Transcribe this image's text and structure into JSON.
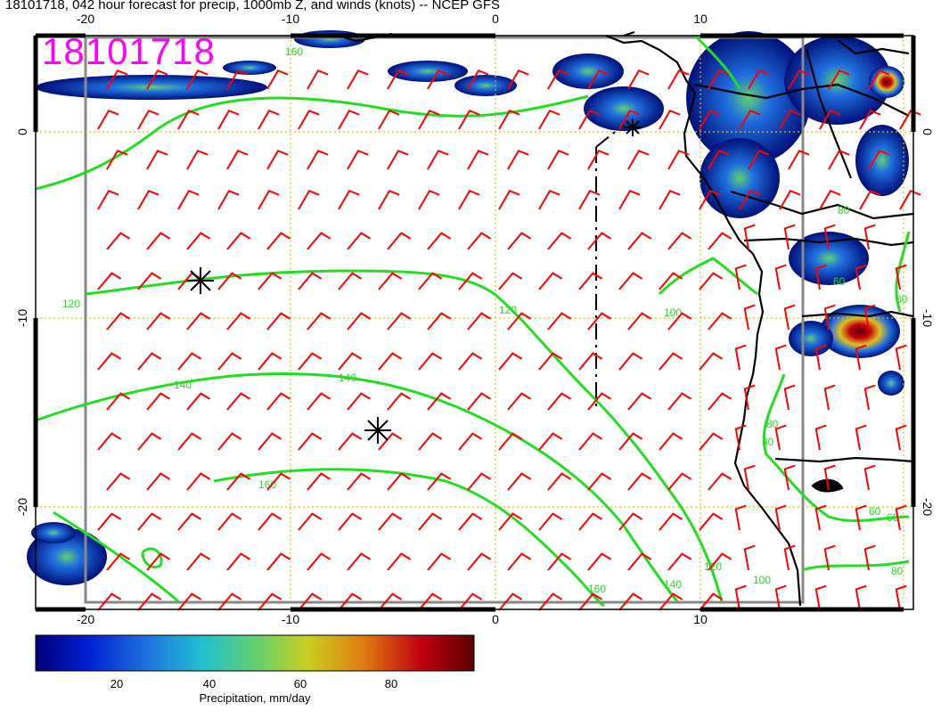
{
  "title": "18101718, 042 hour forecast for precip, 1000mb Z, and winds (knots) -- NCEP GFS",
  "valid_stamp": "18101718",
  "axes": {
    "lon_top": [
      "-20",
      "-10",
      "0",
      "10"
    ],
    "lon_bottom": [
      "-20",
      "-10",
      "0",
      "10"
    ],
    "lat_left": [
      "0",
      "-10",
      "-20"
    ],
    "lat_right": [
      "0",
      "-10",
      "-20"
    ]
  },
  "contour_labels": [
    "120",
    "140",
    "160",
    "120",
    "140",
    "160",
    "100",
    "80",
    "60",
    "80",
    "60",
    "80",
    "100",
    "120",
    "140",
    "160",
    "80",
    "60",
    "80"
  ],
  "colorbar": {
    "label": "Precipitation, mm/day",
    "ticks": [
      "20",
      "40",
      "60",
      "80"
    ],
    "range": [
      2,
      96
    ]
  },
  "colors": {
    "contour": "#22dd22",
    "wind_barb": "#ff0000",
    "coast": "#000000",
    "grid": "#e0c000",
    "stamp": "#ff00ff"
  },
  "markers": [
    "high-pressure-center",
    "high-pressure-center"
  ]
}
